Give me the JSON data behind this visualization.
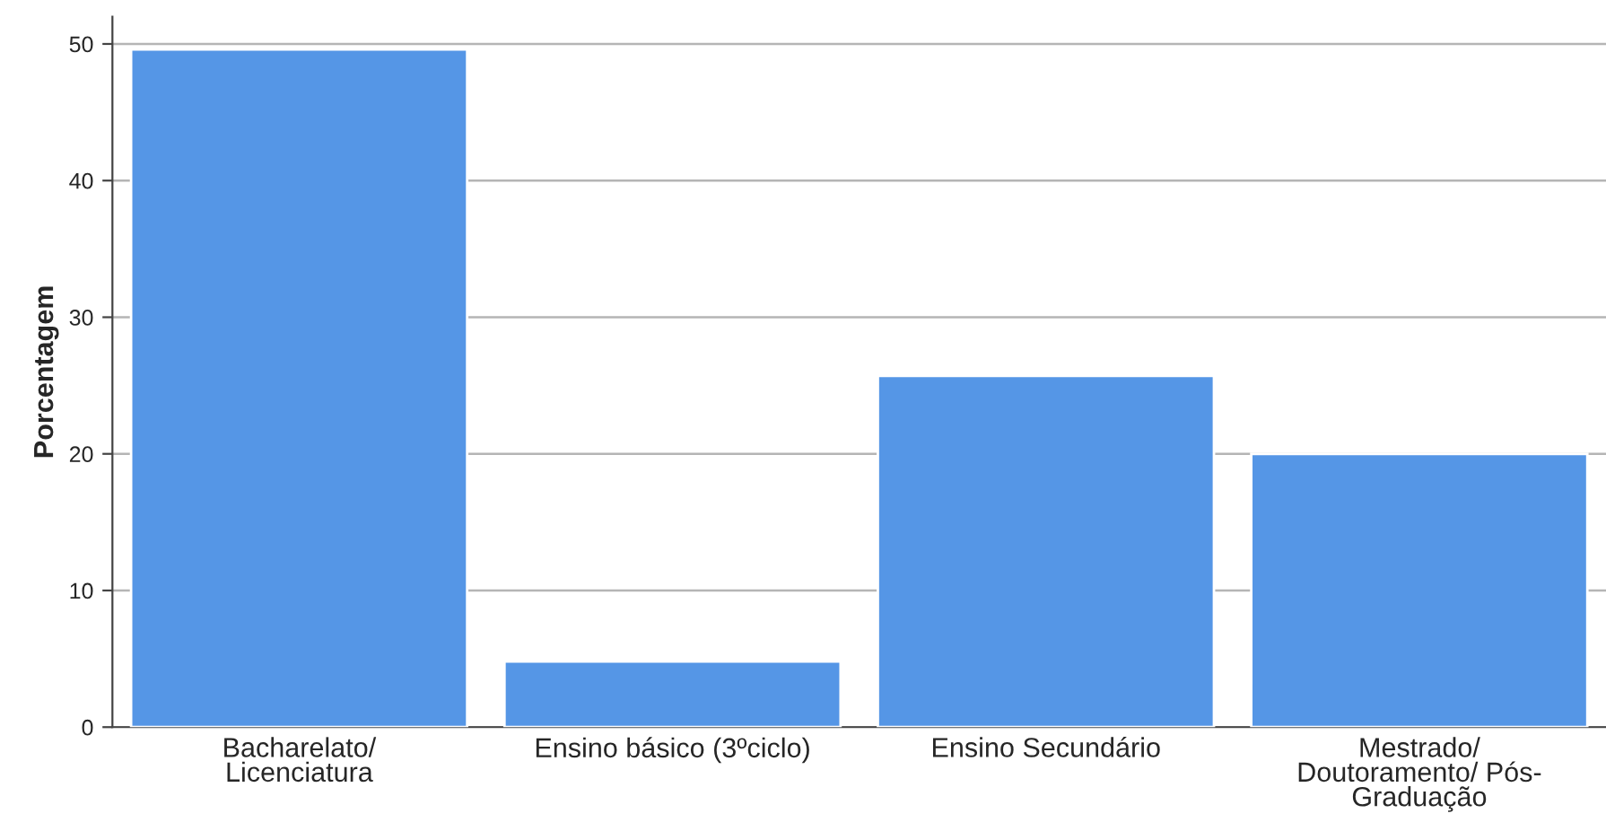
{
  "chart_data": {
    "type": "bar",
    "ylabel": "Porcentagem",
    "categories": [
      "Bacharelato/\nLicenciatura",
      "Ensino básico (3ºciclo)",
      "Ensino Secundário",
      "Mestrado/\nDoutoramento/ Pós-\nGraduação"
    ],
    "values": [
      49.6,
      4.8,
      25.7,
      20.0
    ],
    "color": "#5596e6",
    "ylim": [
      0,
      52
    ],
    "yticks": [
      0,
      10,
      20,
      30,
      40,
      50
    ],
    "grid": "y"
  }
}
